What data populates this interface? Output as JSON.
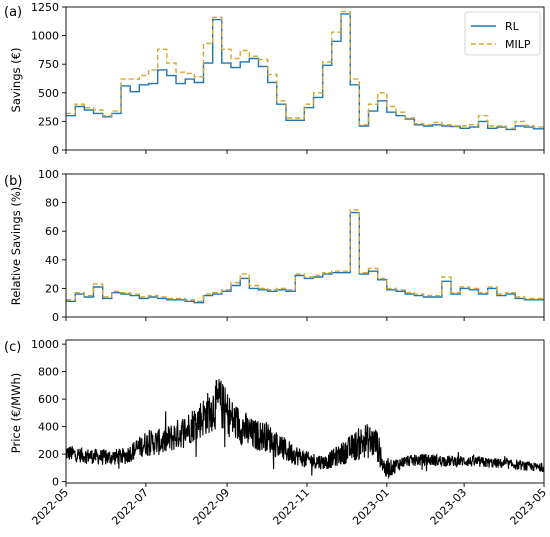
{
  "colors": {
    "rl": "#1f77b4",
    "milp": "#d6a52a",
    "price": "#000000"
  },
  "x_tick_labels": [
    "2022-05",
    "2022-07",
    "2022-09",
    "2022-11",
    "2023-01",
    "2023-03",
    "2023-05"
  ],
  "chart_data": [
    {
      "type": "line",
      "panel_label": "(a)",
      "ylabel": "Savings (€)",
      "ylim": [
        0,
        1250
      ],
      "yticks": [
        0,
        250,
        500,
        750,
        1000,
        1250
      ],
      "xlim": [
        "2022-05-01",
        "2023-05-01"
      ],
      "step": "post",
      "legend": "top-right",
      "x": [
        "2022-05-01",
        "2022-05-08",
        "2022-05-15",
        "2022-05-22",
        "2022-05-29",
        "2022-06-05",
        "2022-06-12",
        "2022-06-19",
        "2022-06-26",
        "2022-07-03",
        "2022-07-10",
        "2022-07-17",
        "2022-07-24",
        "2022-07-31",
        "2022-08-07",
        "2022-08-14",
        "2022-08-21",
        "2022-08-28",
        "2022-09-04",
        "2022-09-11",
        "2022-09-18",
        "2022-09-25",
        "2022-10-02",
        "2022-10-09",
        "2022-10-16",
        "2022-10-23",
        "2022-10-30",
        "2022-11-06",
        "2022-11-13",
        "2022-11-20",
        "2022-11-27",
        "2022-12-04",
        "2022-12-11",
        "2022-12-18",
        "2022-12-25",
        "2023-01-01",
        "2023-01-08",
        "2023-01-15",
        "2023-01-22",
        "2023-01-29",
        "2023-02-05",
        "2023-02-12",
        "2023-02-19",
        "2023-02-26",
        "2023-03-05",
        "2023-03-12",
        "2023-03-19",
        "2023-03-26",
        "2023-04-02",
        "2023-04-09",
        "2023-04-16",
        "2023-04-23"
      ],
      "series": [
        {
          "name": "RL",
          "style": "solid",
          "values": [
            300,
            380,
            350,
            320,
            290,
            320,
            560,
            510,
            570,
            580,
            700,
            650,
            580,
            620,
            590,
            760,
            1140,
            760,
            720,
            770,
            800,
            730,
            590,
            400,
            260,
            260,
            370,
            460,
            740,
            950,
            1190,
            570,
            210,
            340,
            430,
            330,
            300,
            270,
            220,
            210,
            220,
            210,
            205,
            190,
            200,
            250,
            190,
            200,
            180,
            210,
            200,
            185
          ]
        },
        {
          "name": "MILP",
          "style": "dashed",
          "values": [
            320,
            400,
            370,
            350,
            300,
            340,
            620,
            620,
            650,
            700,
            880,
            760,
            680,
            670,
            640,
            930,
            1160,
            880,
            800,
            870,
            820,
            790,
            660,
            430,
            280,
            280,
            400,
            500,
            770,
            1030,
            1210,
            620,
            220,
            400,
            500,
            380,
            330,
            280,
            230,
            220,
            240,
            220,
            210,
            210,
            220,
            300,
            210,
            210,
            190,
            250,
            215,
            200
          ]
        }
      ]
    },
    {
      "type": "line",
      "panel_label": "(b)",
      "ylabel": "Relative Savings (%)",
      "ylim": [
        0,
        100
      ],
      "yticks": [
        0,
        20,
        40,
        60,
        80,
        100
      ],
      "xlim": [
        "2022-05-01",
        "2023-05-01"
      ],
      "step": "post",
      "x": [
        "2022-05-01",
        "2022-05-08",
        "2022-05-15",
        "2022-05-22",
        "2022-05-29",
        "2022-06-05",
        "2022-06-12",
        "2022-06-19",
        "2022-06-26",
        "2022-07-03",
        "2022-07-10",
        "2022-07-17",
        "2022-07-24",
        "2022-07-31",
        "2022-08-07",
        "2022-08-14",
        "2022-08-21",
        "2022-08-28",
        "2022-09-04",
        "2022-09-11",
        "2022-09-18",
        "2022-09-25",
        "2022-10-02",
        "2022-10-09",
        "2022-10-16",
        "2022-10-23",
        "2022-10-30",
        "2022-11-06",
        "2022-11-13",
        "2022-11-20",
        "2022-11-27",
        "2022-12-04",
        "2022-12-11",
        "2022-12-18",
        "2022-12-25",
        "2023-01-01",
        "2023-01-08",
        "2023-01-15",
        "2023-01-22",
        "2023-01-29",
        "2023-02-05",
        "2023-02-12",
        "2023-02-19",
        "2023-02-26",
        "2023-03-05",
        "2023-03-12",
        "2023-03-19",
        "2023-03-26",
        "2023-04-02",
        "2023-04-09",
        "2023-04-16",
        "2023-04-23"
      ],
      "series": [
        {
          "name": "RL",
          "style": "solid",
          "values": [
            11,
            16,
            14,
            21,
            13,
            17,
            16,
            15,
            13,
            14,
            13,
            12,
            12,
            11,
            10,
            15,
            16,
            18,
            22,
            27,
            20,
            19,
            18,
            19,
            18,
            29,
            27,
            28,
            30,
            31,
            31,
            73,
            30,
            32,
            26,
            19,
            18,
            16,
            15,
            14,
            14,
            25,
            16,
            20,
            19,
            16,
            20,
            15,
            16,
            13,
            12,
            12
          ]
        },
        {
          "name": "MILP",
          "style": "dashed",
          "values": [
            12,
            17,
            15,
            23,
            14,
            18,
            17,
            16,
            14,
            15,
            14,
            13,
            13,
            12,
            11,
            16,
            17,
            19,
            24,
            30,
            22,
            20,
            19,
            20,
            19,
            30,
            28,
            29,
            31,
            32,
            32,
            75,
            31,
            34,
            27,
            20,
            19,
            17,
            16,
            15,
            15,
            28,
            17,
            21,
            20,
            17,
            21,
            16,
            17,
            14,
            13,
            13
          ]
        }
      ]
    },
    {
      "type": "line",
      "panel_label": "(c)",
      "ylabel": "Price (€/MWh)",
      "ylim": [
        -10,
        1030
      ],
      "yticks": [
        0,
        200,
        400,
        600,
        800,
        1000
      ],
      "xlim": [
        "2022-05-01",
        "2023-05-01"
      ],
      "series": [
        {
          "name": "Price",
          "x": [
            "2022-05-01",
            "2022-05-15",
            "2022-06-01",
            "2022-06-15",
            "2022-07-01",
            "2022-07-15",
            "2022-08-01",
            "2022-08-15",
            "2022-08-26",
            "2022-09-05",
            "2022-09-20",
            "2022-10-01",
            "2022-10-15",
            "2022-11-01",
            "2022-11-15",
            "2022-12-01",
            "2022-12-15",
            "2022-12-24",
            "2022-12-31",
            "2023-01-15",
            "2023-02-01",
            "2023-02-15",
            "2023-03-01",
            "2023-03-15",
            "2023-04-01",
            "2023-04-15",
            "2023-05-01"
          ],
          "center": [
            210,
            190,
            175,
            185,
            280,
            290,
            380,
            480,
            580,
            450,
            340,
            330,
            230,
            160,
            140,
            220,
            300,
            280,
            80,
            150,
            160,
            150,
            150,
            140,
            130,
            115,
            100
          ],
          "amplitude": [
            60,
            55,
            60,
            60,
            90,
            100,
            120,
            150,
            190,
            150,
            120,
            110,
            90,
            60,
            55,
            90,
            130,
            120,
            70,
            40,
            45,
            40,
            40,
            40,
            35,
            35,
            30
          ]
        }
      ]
    }
  ]
}
